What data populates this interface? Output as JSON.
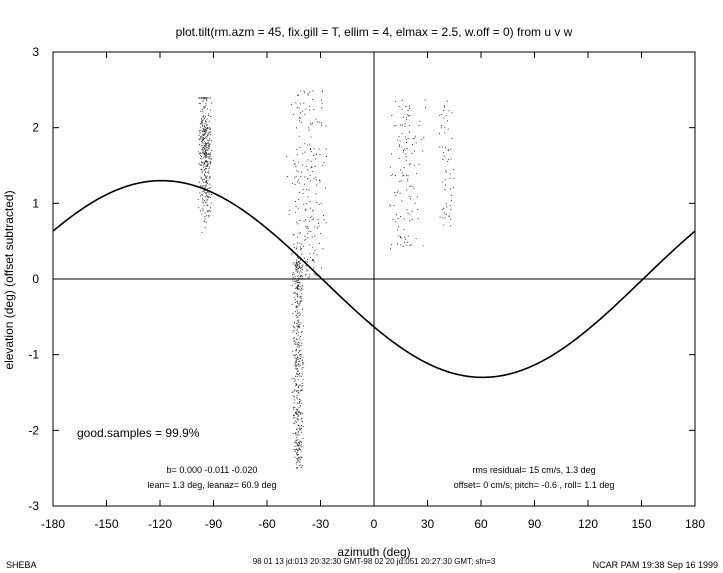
{
  "chart_data": {
    "type": "scatter",
    "title": "plot.tilt(rm.azm = 45, fix.gill = T, ellim = 4, elmax = 2.5, w.off = 0) from u v w",
    "xlabel": "azimuth (deg)",
    "ylabel": "elevation (deg)  (offset subtracted)",
    "xlim": [
      -180,
      180
    ],
    "ylim": [
      -3,
      3
    ],
    "xticks": [
      "-180",
      "-150",
      "-120",
      "-90",
      "-60",
      "-30",
      "0",
      "30",
      "60",
      "90",
      "120",
      "150",
      "180"
    ],
    "yticks": [
      "-3",
      "-2",
      "-1",
      "0",
      "1",
      "2",
      "3"
    ],
    "grid": false,
    "reference_lines": {
      "x": 0,
      "y": 0
    },
    "fit_curve": {
      "lean_deg": 1.3,
      "leanaz_deg": 60.9,
      "b": [
        0.0,
        -0.011,
        -0.02
      ]
    },
    "scatter_clusters": [
      {
        "x_center": -95,
        "x_spread": 4,
        "y_range": [
          0.5,
          2.4
        ],
        "y_center": 1.7,
        "count": 400
      },
      {
        "x_center": -43,
        "x_spread": 3.5,
        "y_range": [
          -2.5,
          0.3
        ],
        "count": 450
      },
      {
        "x_center": -38,
        "x_spread": 12,
        "y_range": [
          0.0,
          2.5
        ],
        "count": 230
      },
      {
        "x_center": 18,
        "x_spread": 12,
        "y_range": [
          0.4,
          2.4
        ],
        "count": 130
      },
      {
        "x_center": 40,
        "x_spread": 5,
        "y_range": [
          0.7,
          2.4
        ],
        "count": 60
      }
    ],
    "annotations": {
      "good_samples": "good.samples = 99.9%",
      "b_line": "b=  0.000 -0.011 -0.020",
      "lean_line": "lean= 1.3 deg, leanaz= 60.9 deg",
      "rms_line": "rms residual= 15 cm/s, 1.3 deg",
      "offset_line": "offset= 0 cm/s; pitch= -0.6 , roll=  1.1 deg"
    }
  },
  "footer": {
    "left": "SHEBA",
    "center": "98 01 13 jd:013 20:32:30 GMT-98 02 20 jd:051  20:27:30 GMT; sfn=3",
    "right": "NCAR PAM 19:38 Sep 16 1999"
  }
}
